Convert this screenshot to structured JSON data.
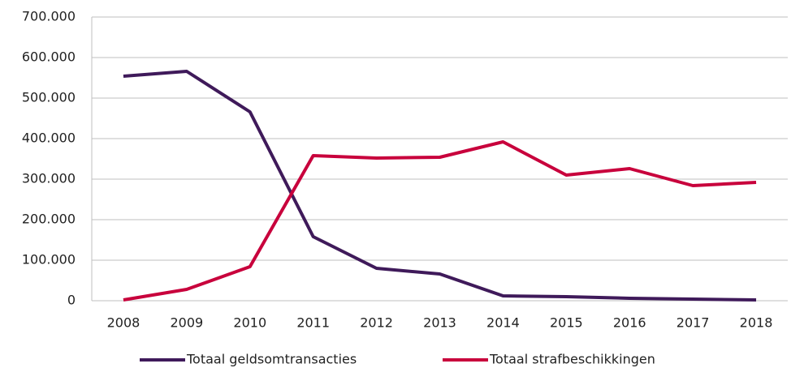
{
  "chart_data": {
    "type": "line",
    "categories": [
      "2008",
      "2009",
      "2010",
      "2011",
      "2012",
      "2013",
      "2014",
      "2015",
      "2016",
      "2017",
      "2018"
    ],
    "series": [
      {
        "name": "Totaal geldsomtransacties",
        "color": "#3f1a5a",
        "values": [
          554000,
          566000,
          466000,
          158000,
          80000,
          66000,
          12000,
          10000,
          6000,
          4000,
          2000
        ]
      },
      {
        "name": "Totaal strafbeschikkingen",
        "color": "#c8003c",
        "values": [
          2000,
          28000,
          84000,
          358000,
          352000,
          354000,
          392000,
          310000,
          326000,
          284000,
          292000
        ]
      }
    ],
    "ylim": [
      0,
      700000
    ],
    "yticks": [
      0,
      {
        "value": 100000,
        "label": "100.000"
      },
      {
        "value": 200000,
        "label": "200.000"
      },
      {
        "value": 300000,
        "label": "300.000"
      },
      {
        "value": 400000,
        "label": "400.000"
      },
      {
        "value": 500000,
        "label": "500.000"
      },
      {
        "value": 600000,
        "label": "600.000"
      },
      {
        "value": 700000,
        "label": "700.000"
      }
    ],
    "grid": true,
    "legend": "bottom"
  }
}
